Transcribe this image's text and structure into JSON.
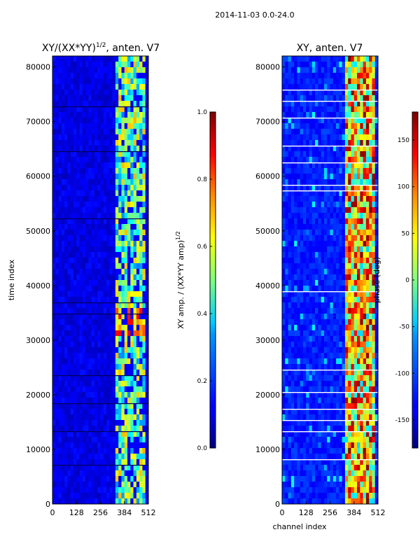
{
  "figure": {
    "suptitle": "2014-11-03 0.0-24.0"
  },
  "chart_data": [
    {
      "type": "heatmap",
      "title": "XY/(XX*YY)",
      "title_exponent": "1/2",
      "title_suffix": ", anten. V7",
      "xlabel": "",
      "ylabel": "time index",
      "x_ticks": [
        0,
        128,
        256,
        384,
        512
      ],
      "y_ticks": [
        0,
        10000,
        20000,
        30000,
        40000,
        50000,
        60000,
        70000,
        80000
      ],
      "xlim": [
        0,
        512
      ],
      "ylim": [
        0,
        82000
      ],
      "colormap": "jet",
      "colorbar": {
        "label": "XY amp. / (XX*YY amp)",
        "label_exponent": "1/2",
        "ticks": [
          "0.0",
          "0.2",
          "0.4",
          "0.6",
          "0.8",
          "1.0"
        ],
        "range": [
          0.0,
          1.0
        ]
      },
      "annotations": [
        "Low normalized amplitude (~0.05-0.15) across most channels",
        "Elevated amplitude (~0.3-0.9) in channels ~330-480",
        "Horizontal dark dropout lines at scattered time indices"
      ]
    },
    {
      "type": "heatmap",
      "title": "XY, anten. V7",
      "xlabel": "channel index",
      "ylabel": "",
      "x_ticks": [
        0,
        128,
        256,
        384,
        512
      ],
      "y_ticks": [
        0,
        10000,
        20000,
        30000,
        40000,
        50000,
        60000,
        70000,
        80000
      ],
      "xlim": [
        0,
        512
      ],
      "ylim": [
        0,
        82000
      ],
      "colormap": "jet",
      "colorbar": {
        "label": "phase (deg)",
        "ticks": [
          "-150",
          "-100",
          "-50",
          "0",
          "50",
          "100",
          "150"
        ],
        "range": [
          -180,
          180
        ]
      },
      "annotations": [
        "Phase mostly near -120 to -160 deg across channels",
        "Varying phase (-50 to 180 deg) in channels ~330-480",
        "White horizontal gaps at scattered time indices"
      ]
    }
  ]
}
